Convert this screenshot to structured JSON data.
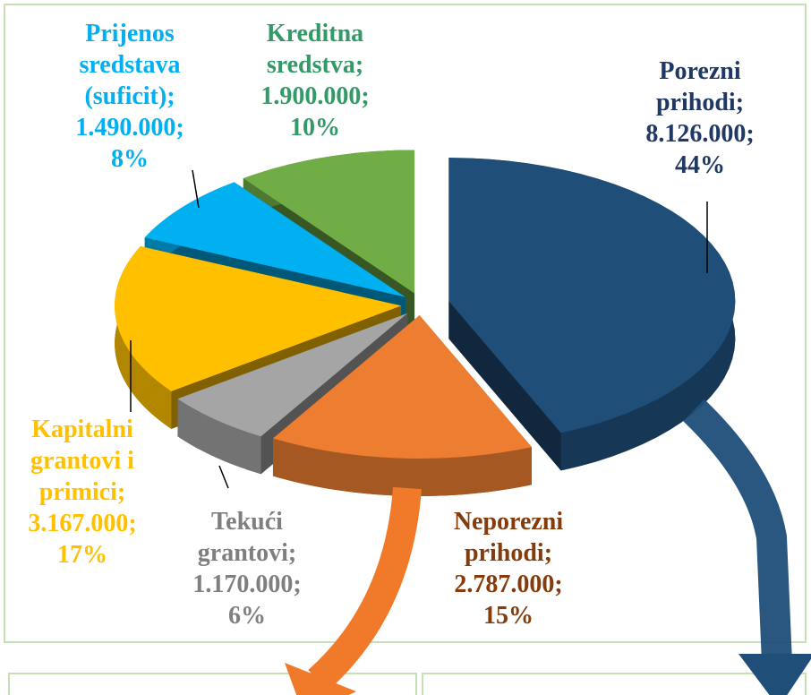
{
  "chart_data": {
    "type": "pie",
    "categories": [
      "Porezni prihodi",
      "Neporezni prihodi",
      "Tekući grantovi",
      "Kapitalni grantovi i primici",
      "Prijenos sredstava (suficit)",
      "Kreditna sredstva"
    ],
    "values": [
      8126000,
      2787000,
      1170000,
      3167000,
      1490000,
      1900000
    ],
    "value_labels": [
      "8.126.000",
      "2.787.000",
      "1.170.000",
      "3.167.000",
      "1.490.000",
      "1.900.000"
    ],
    "percentages": [
      44,
      15,
      6,
      17,
      8,
      10
    ],
    "percent_labels": [
      "44%",
      "15%",
      "6%",
      "17%",
      "8%",
      "10%"
    ],
    "label_separator": ";",
    "colors": [
      "#1f4e79",
      "#ed7d31",
      "#a5a5a5",
      "#ffc000",
      "#00b0f0",
      "#70ad47"
    ],
    "label_colors": [
      "#1f3864",
      "#843c0c",
      "#7f7f7f",
      "#ffc000",
      "#00b0f0",
      "#339966"
    ]
  }
}
